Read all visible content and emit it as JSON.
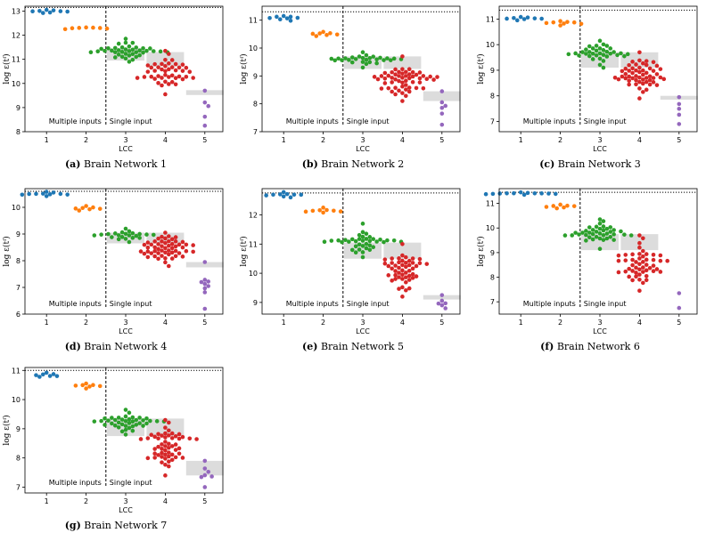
{
  "figure": {
    "xlabel": "LCC",
    "ylabel": "log ε(tᶠ)",
    "annotation_left": "Multiple inputs",
    "annotation_right": "Single input",
    "colors": {
      "lcc1": "#1f77b4",
      "lcc2": "#ff7f0e",
      "lcc3": "#2ca02c",
      "lcc4": "#d62728",
      "lcc5": "#9467bd",
      "band": "#dcdcdc"
    }
  },
  "chart_data": [
    {
      "type": "scatter",
      "letter": "(a)",
      "title": "Brain Network 1",
      "xlabel": "LCC",
      "ylabel": "log ε(tᶠ)",
      "xticks": [
        "1",
        "2",
        "3",
        "4",
        "5"
      ],
      "ylim": [
        8,
        13.2
      ],
      "yticks": [
        8,
        9,
        10,
        11,
        12,
        13
      ],
      "ref_line": 13.15,
      "groups": [
        {
          "x": 1,
          "n": 8,
          "min": 12.92,
          "max": 13.05,
          "mean": 13.0
        },
        {
          "x": 2,
          "n": 7,
          "min": 12.25,
          "max": 12.32,
          "mean": 12.28
        },
        {
          "x": 3,
          "n": 40,
          "min": 10.9,
          "max": 11.85,
          "mean": 11.4
        },
        {
          "x": 4,
          "n": 45,
          "min": 9.55,
          "max": 11.35,
          "mean": 10.6
        },
        {
          "x": 5,
          "n": 5,
          "min": 8.25,
          "max": 9.7,
          "mean": 8.9
        }
      ],
      "bands": [
        {
          "x": 3,
          "low": 10.95,
          "high": 11.45
        },
        {
          "x": 4,
          "low": 10.7,
          "high": 11.3
        },
        {
          "x": 5,
          "low": 9.52,
          "high": 9.72
        }
      ]
    },
    {
      "type": "scatter",
      "letter": "(b)",
      "title": "Brain Network 2",
      "xlabel": "LCC",
      "ylabel": "log ε(tᶠ)",
      "xticks": [
        "1",
        "2",
        "3",
        "4",
        "5"
      ],
      "ylim": [
        7,
        11.5
      ],
      "yticks": [
        7,
        8,
        9,
        10,
        11
      ],
      "ref_line": 11.3,
      "groups": [
        {
          "x": 1,
          "n": 8,
          "min": 10.98,
          "max": 11.15,
          "mean": 11.05
        },
        {
          "x": 2,
          "n": 7,
          "min": 10.43,
          "max": 10.58,
          "mean": 10.5
        },
        {
          "x": 3,
          "n": 28,
          "min": 9.3,
          "max": 9.85,
          "mean": 9.6
        },
        {
          "x": 4,
          "n": 55,
          "min": 8.1,
          "max": 9.7,
          "mean": 9.1
        },
        {
          "x": 5,
          "n": 6,
          "min": 7.25,
          "max": 8.45,
          "mean": 7.7
        }
      ],
      "bands": [
        {
          "x": 3,
          "low": 9.25,
          "high": 9.7
        },
        {
          "x": 4,
          "low": 9.25,
          "high": 9.7
        },
        {
          "x": 5,
          "low": 8.1,
          "high": 8.45
        }
      ]
    },
    {
      "type": "scatter",
      "letter": "(c)",
      "title": "Brain Network 3",
      "xlabel": "LCC",
      "ylabel": "log ε(tᶠ)",
      "xticks": [
        "1",
        "2",
        "3",
        "4",
        "5"
      ],
      "ylim": [
        6.6,
        11.5
      ],
      "yticks": [
        7,
        8,
        9,
        10,
        11
      ],
      "ref_line": 11.35,
      "groups": [
        {
          "x": 1,
          "n": 8,
          "min": 10.95,
          "max": 11.08,
          "mean": 11.0
        },
        {
          "x": 2,
          "n": 8,
          "min": 10.75,
          "max": 10.92,
          "mean": 10.85
        },
        {
          "x": 3,
          "n": 35,
          "min": 9.1,
          "max": 10.15,
          "mean": 9.6
        },
        {
          "x": 4,
          "n": 55,
          "min": 7.9,
          "max": 9.7,
          "mean": 8.9
        },
        {
          "x": 5,
          "n": 5,
          "min": 6.9,
          "max": 7.95,
          "mean": 7.3
        }
      ],
      "bands": [
        {
          "x": 3,
          "low": 9.1,
          "high": 9.7
        },
        {
          "x": 4,
          "low": 9.1,
          "high": 9.7
        },
        {
          "x": 5,
          "low": 7.85,
          "high": 8.0
        }
      ]
    },
    {
      "type": "scatter",
      "letter": "(d)",
      "title": "Brain Network 4",
      "xlabel": "LCC",
      "ylabel": "log ε(tᶠ)",
      "xticks": [
        "1",
        "2",
        "3",
        "4",
        "5"
      ],
      "ylim": [
        6,
        10.7
      ],
      "yticks": [
        6,
        7,
        8,
        9,
        10
      ],
      "ref_line": 10.6,
      "groups": [
        {
          "x": 1,
          "n": 10,
          "min": 10.42,
          "max": 10.58,
          "mean": 10.5
        },
        {
          "x": 2,
          "n": 7,
          "min": 9.88,
          "max": 10.05,
          "mean": 9.95
        },
        {
          "x": 3,
          "n": 22,
          "min": 8.7,
          "max": 9.2,
          "mean": 9.0
        },
        {
          "x": 4,
          "n": 55,
          "min": 7.8,
          "max": 9.05,
          "mean": 8.4
        },
        {
          "x": 5,
          "n": 9,
          "min": 6.2,
          "max": 7.95,
          "mean": 7.0
        }
      ],
      "bands": [
        {
          "x": 3,
          "low": 8.65,
          "high": 9.05
        },
        {
          "x": 4,
          "low": 8.65,
          "high": 9.05
        },
        {
          "x": 5,
          "low": 7.75,
          "high": 7.95
        }
      ]
    },
    {
      "type": "scatter",
      "letter": "(e)",
      "title": "Brain Network 5",
      "xlabel": "LCC",
      "ylabel": "log ε(tᶠ)",
      "xticks": [
        "1",
        "2",
        "3",
        "4",
        "5"
      ],
      "ylim": [
        8.6,
        12.9
      ],
      "yticks": [
        9,
        10,
        11,
        12
      ],
      "ref_line": 12.75,
      "groups": [
        {
          "x": 1,
          "n": 9,
          "min": 12.6,
          "max": 12.78,
          "mean": 12.7
        },
        {
          "x": 2,
          "n": 8,
          "min": 12.08,
          "max": 12.25,
          "mean": 12.15
        },
        {
          "x": 3,
          "n": 38,
          "min": 10.55,
          "max": 11.7,
          "mean": 11.1
        },
        {
          "x": 4,
          "n": 50,
          "min": 9.2,
          "max": 11.0,
          "mean": 10.1
        },
        {
          "x": 5,
          "n": 6,
          "min": 8.8,
          "max": 9.25,
          "mean": 9.0
        }
      ],
      "bands": [
        {
          "x": 3,
          "low": 10.5,
          "high": 11.05
        },
        {
          "x": 4,
          "low": 10.5,
          "high": 11.05
        },
        {
          "x": 5,
          "low": 9.1,
          "high": 9.25
        }
      ]
    },
    {
      "type": "scatter",
      "letter": "(f)",
      "title": "Brain Network 6",
      "xlabel": "LCC",
      "ylabel": "log ε(tᶠ)",
      "xticks": [
        "1",
        "2",
        "3",
        "4",
        "5"
      ],
      "ylim": [
        6.5,
        11.6
      ],
      "yticks": [
        7,
        8,
        9,
        10,
        11
      ],
      "ref_line": 11.45,
      "groups": [
        {
          "x": 1,
          "n": 12,
          "min": 11.35,
          "max": 11.45,
          "mean": 11.4
        },
        {
          "x": 2,
          "n": 7,
          "min": 10.8,
          "max": 10.95,
          "mean": 10.85
        },
        {
          "x": 3,
          "n": 40,
          "min": 9.15,
          "max": 10.35,
          "mean": 9.6
        },
        {
          "x": 4,
          "n": 50,
          "min": 7.45,
          "max": 9.7,
          "mean": 8.8
        },
        {
          "x": 5,
          "n": 2,
          "min": 6.75,
          "max": 7.35,
          "mean": 7.0
        }
      ],
      "bands": [
        {
          "x": 3,
          "low": 9.1,
          "high": 9.75
        },
        {
          "x": 4,
          "low": 9.1,
          "high": 9.75
        }
      ]
    },
    {
      "type": "scatter",
      "letter": "(g)",
      "title": "Brain Network 7",
      "xlabel": "LCC",
      "ylabel": "log ε(tᶠ)",
      "xticks": [
        "1",
        "2",
        "3",
        "4",
        "5"
      ],
      "ylim": [
        6.8,
        11.1
      ],
      "yticks": [
        7,
        8,
        9,
        10,
        11
      ],
      "ref_line": 11.0,
      "groups": [
        {
          "x": 1,
          "n": 7,
          "min": 10.78,
          "max": 10.92,
          "mean": 10.85
        },
        {
          "x": 2,
          "n": 7,
          "min": 10.38,
          "max": 10.55,
          "mean": 10.45
        },
        {
          "x": 3,
          "n": 40,
          "min": 8.8,
          "max": 9.65,
          "mean": 9.3
        },
        {
          "x": 4,
          "n": 55,
          "min": 7.4,
          "max": 9.3,
          "mean": 8.5
        },
        {
          "x": 5,
          "n": 7,
          "min": 7.0,
          "max": 7.9,
          "mean": 7.5
        }
      ],
      "bands": [
        {
          "x": 3,
          "low": 8.75,
          "high": 9.35
        },
        {
          "x": 4,
          "low": 8.75,
          "high": 9.35
        },
        {
          "x": 5,
          "low": 7.4,
          "high": 7.9
        }
      ]
    }
  ]
}
